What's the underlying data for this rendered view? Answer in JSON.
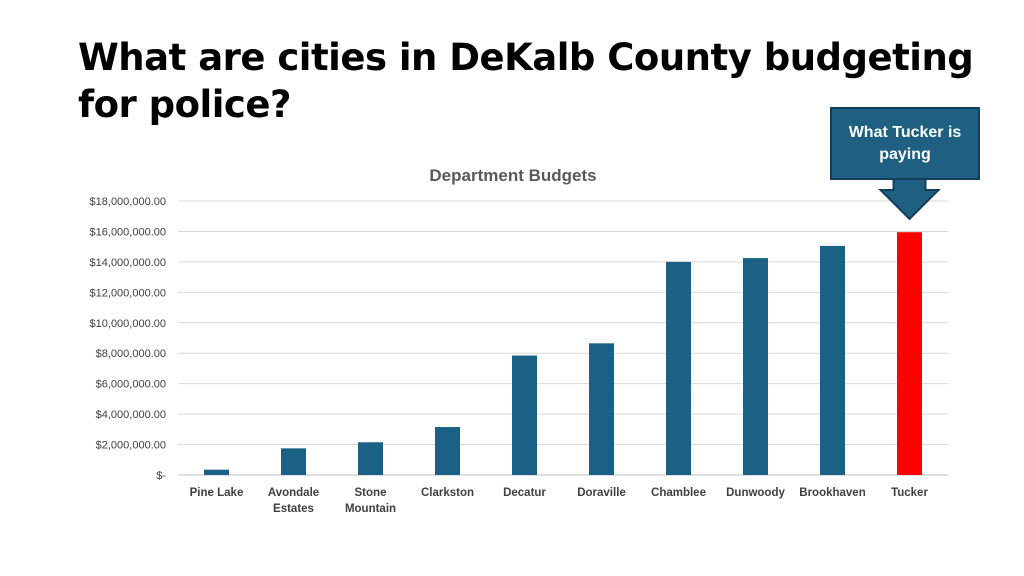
{
  "slide": {
    "title": "What are cities in DeKalb County budgeting for police?"
  },
  "callout": {
    "text": "What Tucker is paying",
    "fill_color": "#1f5f82"
  },
  "chart_data": {
    "type": "bar",
    "title": "Department Budgets",
    "categories": [
      "Pine Lake",
      "Avondale Estates",
      "Stone Mountain",
      "Clarkston",
      "Decatur",
      "Doraville",
      "Chamblee",
      "Dunwoody",
      "Brookhaven",
      "Tucker"
    ],
    "category_lines": [
      [
        "Pine Lake"
      ],
      [
        "Avondale",
        "Estates"
      ],
      [
        "Stone",
        "Mountain"
      ],
      [
        "Clarkston"
      ],
      [
        "Decatur"
      ],
      [
        "Doraville"
      ],
      [
        "Chamblee"
      ],
      [
        "Dunwoody"
      ],
      [
        "Brookhaven"
      ],
      [
        "Tucker"
      ]
    ],
    "values": [
      350000,
      1750000,
      2150000,
      3150000,
      7850000,
      8650000,
      14000000,
      14250000,
      15050000,
      15950000
    ],
    "bar_colors": [
      "#1a6185",
      "#1a6185",
      "#1a6185",
      "#1a6185",
      "#1a6185",
      "#1a6185",
      "#1a6185",
      "#1a6185",
      "#1a6185",
      "#ff0000"
    ],
    "ylim": [
      0,
      18000000
    ],
    "yticks": [
      0,
      2000000,
      4000000,
      6000000,
      8000000,
      10000000,
      12000000,
      14000000,
      16000000,
      18000000
    ],
    "ytick_labels": [
      "$-",
      "$2,000,000.00",
      "$4,000,000.00",
      "$6,000,000.00",
      "$8,000,000.00",
      "$10,000,000.00",
      "$12,000,000.00",
      "$14,000,000.00",
      "$16,000,000.00",
      "$18,000,000.00"
    ],
    "grid": true,
    "legend": "none"
  }
}
